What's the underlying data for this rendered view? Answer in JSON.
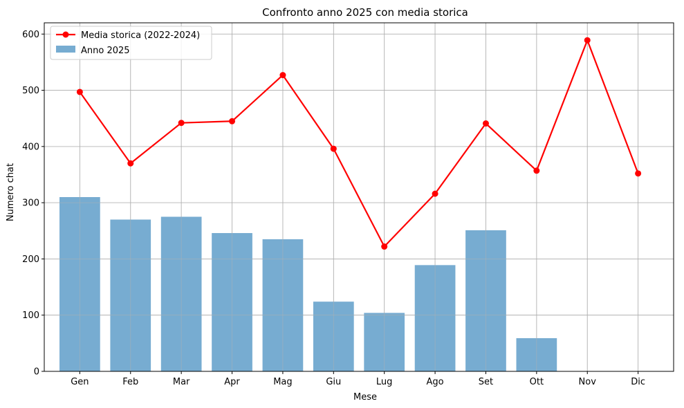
{
  "chart_data": {
    "type": "bar",
    "title": "Confronto anno 2025 con media storica",
    "xlabel": "Mese",
    "ylabel": "Numero chat",
    "categories": [
      "Gen",
      "Feb",
      "Mar",
      "Apr",
      "Mag",
      "Giu",
      "Lug",
      "Ago",
      "Set",
      "Ott",
      "Nov",
      "Dic"
    ],
    "ylim": [
      0,
      620
    ],
    "yticks": [
      0,
      100,
      200,
      300,
      400,
      500,
      600
    ],
    "grid": true,
    "legend_position": "top-left",
    "series": [
      {
        "name": "Media storica (2022-2024)",
        "type": "line",
        "color": "#ff0000",
        "values": [
          497,
          370,
          442,
          445,
          527,
          396,
          222,
          316,
          441,
          357,
          589,
          352
        ]
      },
      {
        "name": "Anno 2025",
        "type": "bar",
        "color": "#77acd1",
        "values": [
          310,
          270,
          275,
          246,
          235,
          124,
          104,
          189,
          251,
          59,
          null,
          null
        ]
      }
    ]
  }
}
